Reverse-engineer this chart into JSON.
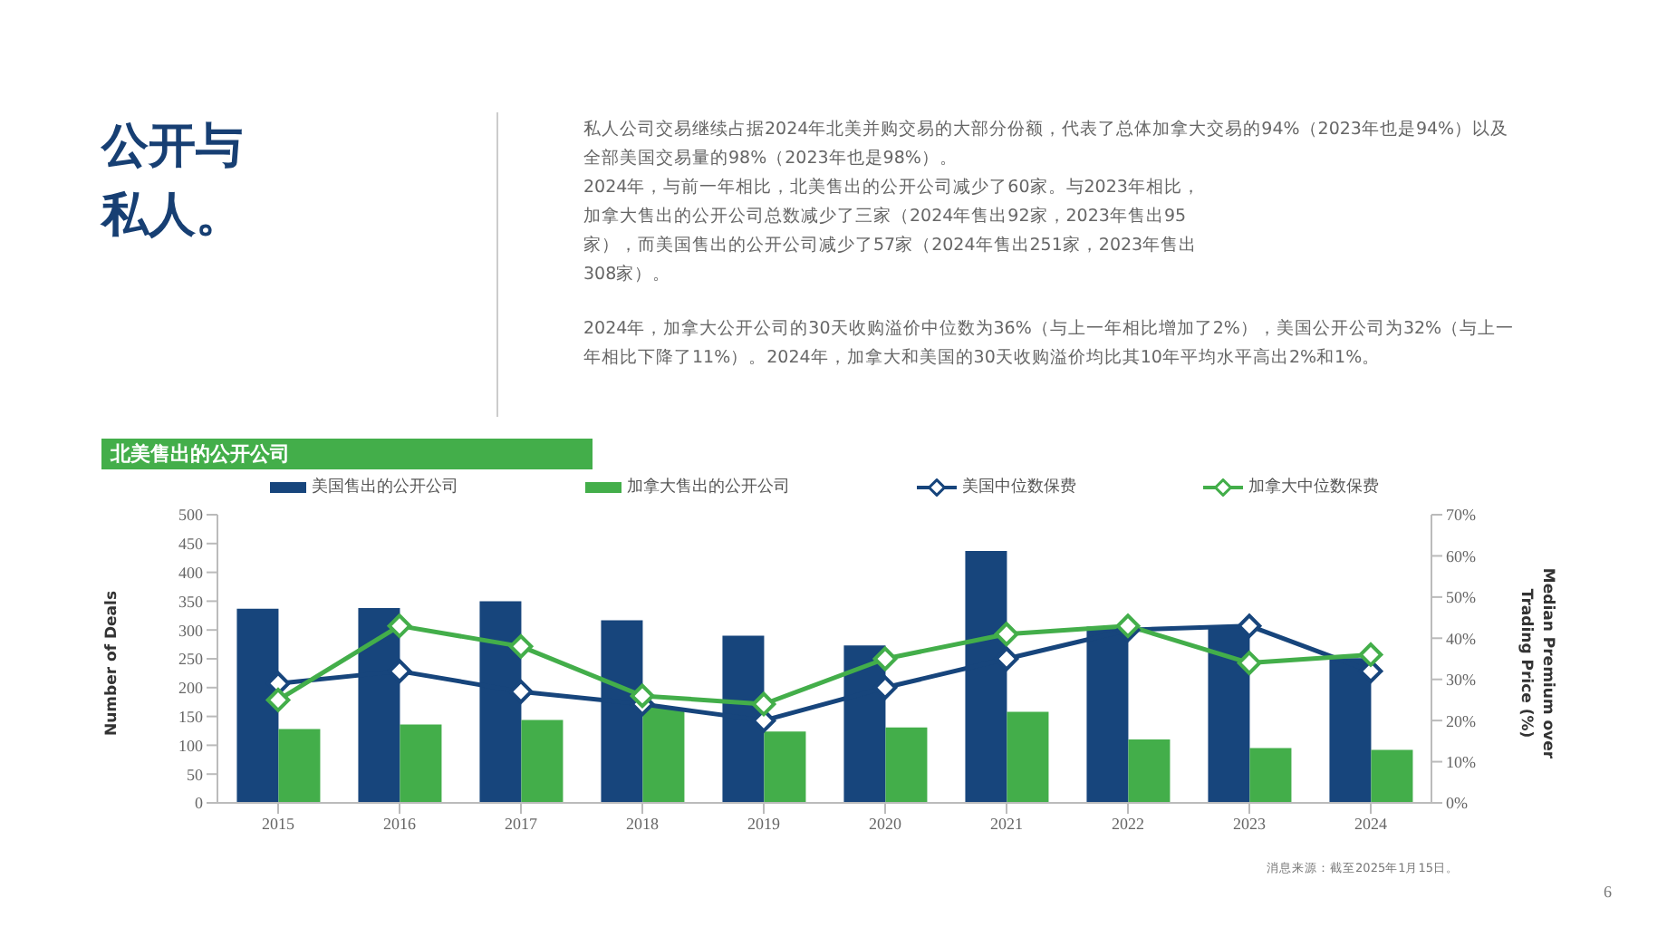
{
  "chart_data": {
    "type": "bar",
    "title": "公开与私人。",
    "subtitle": "北美售出的公开公司",
    "annotations": [
      "私人公司交易继续占据2024年北美并购交易的大部分份额，代表了总体加拿大交易的94%（2023年也是94%）以及全部美国交易量的98%（2023年也是98%）。",
      "2024年，与前一年相比，北美售出的公开公司减少了60家。与2023年相比，加拿大售出的公开公司总数减少了三家（2024年售出92家，2023年售出95家），而美国售出的公开公司减少了57家（2024年售出251家，2023年售出308家）。",
      "2024年，加拿大公开公司的30天收购溢价中位数为36%（与上一年相比增加了2%），美国公开公司为32%（与上一年相比下降了11%）。2024年，加拿大和美国的30天收购溢价均比其10年平均水平高出2%和1%。",
      "消息来源：截至2025年1月15日。",
      "6"
    ],
    "categories": [
      "2015",
      "2016",
      "2017",
      "2018",
      "2019",
      "2020",
      "2021",
      "2022",
      "2023",
      "2024"
    ],
    "series": [
      {
        "name": "美国售出的公开公司",
        "color": "#17457c",
        "values": [
          337,
          338,
          350,
          317,
          290,
          273,
          437,
          306,
          308,
          251
        ]
      },
      {
        "name": "加拿大售出的公开公司",
        "color": "#43ae4a",
        "values": [
          128,
          136,
          144,
          165,
          124,
          131,
          158,
          110,
          95,
          92
        ]
      },
      {
        "name": "美国中位数保费",
        "type": "line",
        "axis": "y2",
        "color": "#17457c",
        "values": [
          29,
          32,
          27,
          24,
          20,
          28,
          35,
          42,
          43,
          32
        ]
      },
      {
        "name": "加拿大中位数保费",
        "type": "line",
        "axis": "y2",
        "color": "#43ae4a",
        "values": [
          25,
          43,
          38,
          26,
          24,
          35,
          41,
          43,
          34,
          36
        ]
      }
    ],
    "ylabel": "Number of Deals",
    "y2label": "Median Premium over Trading Price (%)",
    "ylim": [
      0,
      500
    ],
    "yticks": [
      0,
      50,
      100,
      150,
      200,
      250,
      300,
      350,
      400,
      450,
      500
    ],
    "y2lim": [
      0,
      70
    ],
    "y2ticks": [
      {
        "value": 0,
        "label": "0%"
      },
      {
        "value": 10,
        "label": "10%"
      },
      {
        "value": 20,
        "label": "20%"
      },
      {
        "value": 30,
        "label": "30%"
      },
      {
        "value": 40,
        "label": "40%"
      },
      {
        "value": 50,
        "label": "50%"
      },
      {
        "value": 60,
        "label": "60%"
      },
      {
        "value": 70,
        "label": "70%"
      }
    ],
    "marker": "diamond",
    "legend": "top",
    "grid": false
  }
}
